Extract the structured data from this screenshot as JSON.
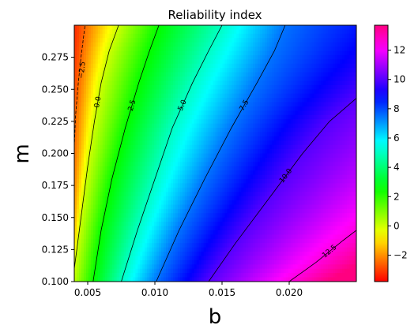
{
  "chart_data": {
    "type": "heatmap",
    "title": "Reliability index",
    "xlabel": "b",
    "ylabel": "m",
    "xlim": [
      0.004,
      0.025
    ],
    "ylim": [
      0.1,
      0.3
    ],
    "x_ticks": [
      {
        "value": 0.005,
        "label": "0.005"
      },
      {
        "value": 0.01,
        "label": "0.010"
      },
      {
        "value": 0.015,
        "label": "0.015"
      },
      {
        "value": 0.02,
        "label": "0.020"
      }
    ],
    "y_ticks": [
      {
        "value": 0.1,
        "label": "0.100"
      },
      {
        "value": 0.125,
        "label": "0.125"
      },
      {
        "value": 0.15,
        "label": "0.150"
      },
      {
        "value": 0.175,
        "label": "0.175"
      },
      {
        "value": 0.2,
        "label": "0.200"
      },
      {
        "value": 0.225,
        "label": "0.225"
      },
      {
        "value": 0.25,
        "label": "0.250"
      },
      {
        "value": 0.275,
        "label": "0.275"
      }
    ],
    "colormap": "hsv",
    "color_range": [
      -3.8,
      13.7
    ],
    "colorbar_ticks": [
      {
        "value": -2,
        "label": "−2"
      },
      {
        "value": 0,
        "label": "0"
      },
      {
        "value": 2,
        "label": "2"
      },
      {
        "value": 4,
        "label": "4"
      },
      {
        "value": 6,
        "label": "6"
      },
      {
        "value": 8,
        "label": "8"
      },
      {
        "value": 10,
        "label": "10"
      },
      {
        "value": 12,
        "label": "12"
      }
    ],
    "contours": [
      {
        "level": -2.5,
        "label": "−2.5",
        "dashed": true,
        "points": [
          [
            0.004,
            0.205
          ],
          [
            0.0041,
            0.23
          ],
          [
            0.0043,
            0.255
          ],
          [
            0.0045,
            0.275
          ],
          [
            0.0048,
            0.3
          ]
        ]
      },
      {
        "level": 0.0,
        "label": "0.0",
        "dashed": false,
        "points": [
          [
            0.004,
            0.11
          ],
          [
            0.0045,
            0.15
          ],
          [
            0.005,
            0.19
          ],
          [
            0.0055,
            0.225
          ],
          [
            0.006,
            0.255
          ],
          [
            0.0066,
            0.28
          ],
          [
            0.0073,
            0.3
          ]
        ]
      },
      {
        "level": 2.5,
        "label": "2.5",
        "dashed": false,
        "points": [
          [
            0.0054,
            0.1
          ],
          [
            0.006,
            0.14
          ],
          [
            0.0068,
            0.18
          ],
          [
            0.0078,
            0.22
          ],
          [
            0.0088,
            0.255
          ],
          [
            0.0096,
            0.28
          ],
          [
            0.0103,
            0.3
          ]
        ]
      },
      {
        "level": 5.0,
        "label": "5.0",
        "dashed": false,
        "points": [
          [
            0.0075,
            0.1
          ],
          [
            0.0087,
            0.14
          ],
          [
            0.01,
            0.18
          ],
          [
            0.0113,
            0.22
          ],
          [
            0.0128,
            0.255
          ],
          [
            0.014,
            0.28
          ],
          [
            0.015,
            0.3
          ]
        ]
      },
      {
        "level": 7.5,
        "label": "7.5",
        "dashed": false,
        "points": [
          [
            0.0101,
            0.1
          ],
          [
            0.0118,
            0.14
          ],
          [
            0.0137,
            0.18
          ],
          [
            0.0157,
            0.22
          ],
          [
            0.0176,
            0.255
          ],
          [
            0.0189,
            0.28
          ],
          [
            0.0197,
            0.3
          ]
        ]
      },
      {
        "level": 10.0,
        "label": "10.0",
        "dashed": false,
        "points": [
          [
            0.014,
            0.1
          ],
          [
            0.016,
            0.13
          ],
          [
            0.0185,
            0.165
          ],
          [
            0.021,
            0.2
          ],
          [
            0.023,
            0.225
          ],
          [
            0.025,
            0.243
          ]
        ]
      },
      {
        "level": 12.5,
        "label": "12.5",
        "dashed": false,
        "points": [
          [
            0.02,
            0.1
          ],
          [
            0.022,
            0.115
          ],
          [
            0.024,
            0.132
          ],
          [
            0.025,
            0.14
          ]
        ]
      }
    ]
  }
}
